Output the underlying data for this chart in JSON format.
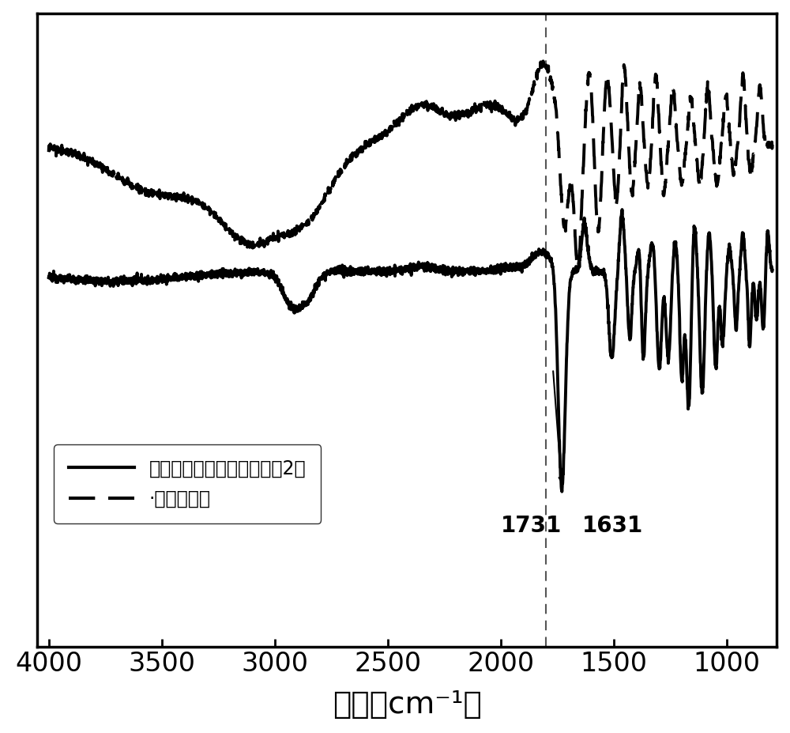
{
  "xlabel": "波数（cm⁻¹）",
  "xlabel_fontsize": 28,
  "xticks": [
    4000,
    3500,
    3000,
    2500,
    2000,
    1500,
    1000
  ],
  "tick_fontsize": 24,
  "annotation_1": "1731",
  "annotation_2": "1631",
  "vline_x": 1800,
  "legend_label_solid": "木质素基大分子单体（实例2）",
  "legend_label_dashed": "·酶解木质素",
  "line_color": "#000000",
  "background_color": "#ffffff",
  "figure_width": 10.0,
  "figure_height": 9.27
}
